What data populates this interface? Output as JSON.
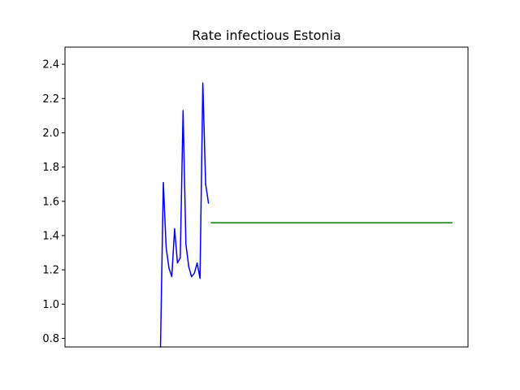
{
  "chart_data": {
    "type": "line",
    "title": "Rate infectious Estonia",
    "xlabel": "",
    "ylabel": "",
    "xlim": [
      0,
      100
    ],
    "ylim": [
      0.75,
      2.5
    ],
    "yticks": [
      0.8,
      1.0,
      1.2,
      1.4,
      1.6,
      1.8,
      2.0,
      2.2,
      2.4
    ],
    "ytick_labels": [
      "0.8",
      "1.0",
      "1.2",
      "1.4",
      "1.6",
      "1.8",
      "2.0",
      "2.2",
      "2.4"
    ],
    "show_xticks": false,
    "grid": false,
    "series": [
      {
        "color": "#0000ff",
        "x": [
          23.7,
          24.4,
          25.1,
          25.8,
          26.5,
          27.2,
          27.9,
          28.6,
          29.3,
          30.0,
          30.7,
          31.4,
          32.1,
          32.8,
          33.5,
          34.2,
          34.9
        ],
        "y": [
          0.75,
          1.71,
          1.33,
          1.21,
          1.16,
          1.44,
          1.24,
          1.27,
          2.13,
          1.35,
          1.22,
          1.16,
          1.18,
          1.24,
          1.15,
          2.29,
          1.7
        ]
      },
      {
        "color": "#0000ff",
        "x": [
          34.9,
          35.6
        ],
        "y": [
          1.7,
          1.59
        ]
      },
      {
        "color": "#008000",
        "x": [
          36.3,
          96.0
        ],
        "y": [
          1.475,
          1.475
        ]
      }
    ]
  }
}
